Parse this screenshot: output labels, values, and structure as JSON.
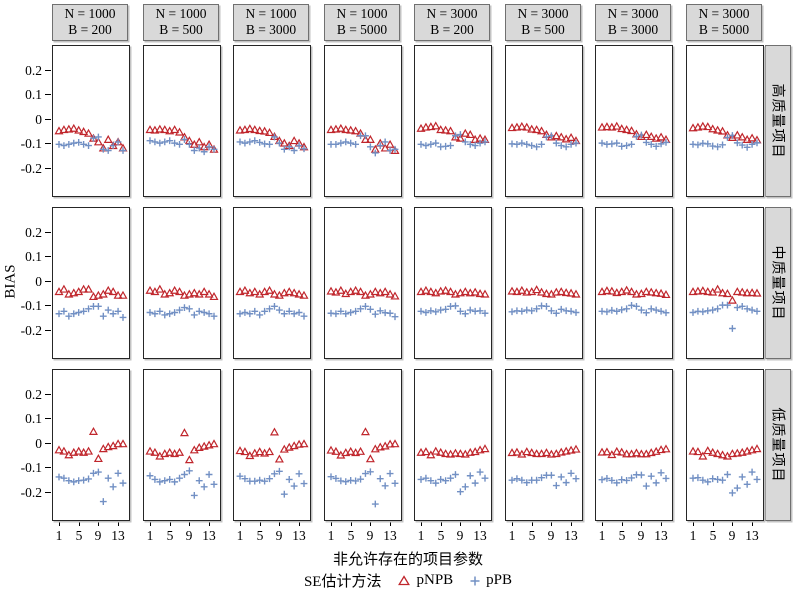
{
  "figure_title": "",
  "columns": [
    {
      "line1": "N = 1000",
      "line2": "B = 200"
    },
    {
      "line1": "N = 1000",
      "line2": "B = 500"
    },
    {
      "line1": "N = 1000",
      "line2": "B = 3000"
    },
    {
      "line1": "N = 1000",
      "line2": "B = 5000"
    },
    {
      "line1": "N = 3000",
      "line2": "B = 200"
    },
    {
      "line1": "N = 3000",
      "line2": "B = 500"
    },
    {
      "line1": "N = 3000",
      "line2": "B = 3000"
    },
    {
      "line1": "N = 3000",
      "line2": "B = 5000"
    }
  ],
  "rows": [
    "高质量项目",
    "中质量项目",
    "低质量项目"
  ],
  "axes": {
    "y_label": "BIAS",
    "y_ticks": [
      0.2,
      0.1,
      0,
      -0.1,
      -0.2
    ],
    "x_ticks": [
      1,
      5,
      9,
      13
    ],
    "x_label": "非允许存在的项目参数"
  },
  "legend": {
    "title": "SE估计方法",
    "items": [
      {
        "symbol": "triangle-icon",
        "label": "pNPB"
      },
      {
        "symbol": "plus-icon",
        "label": "pPB"
      }
    ]
  },
  "colors": {
    "triangle": "#c0262c",
    "plus": "#7290c4",
    "strip_bg": "#d9d9d9",
    "panel_border": "#262626"
  },
  "chart_data": {
    "type": "scatter",
    "x": [
      1,
      2,
      3,
      4,
      5,
      6,
      7,
      8,
      9,
      10,
      11,
      12,
      13,
      14
    ],
    "ylim": [
      -0.31,
      0.3
    ],
    "grid": false,
    "layout": "lattice 3 rows (item quality) x 8 cols (N, B conditions)",
    "panels": [
      {
        "row": "高质量项目",
        "col": "N = 1000, B = 200",
        "pNPB": [
          -0.045,
          -0.04,
          -0.038,
          -0.035,
          -0.042,
          -0.048,
          -0.055,
          -0.075,
          -0.09,
          -0.115,
          -0.08,
          -0.105,
          -0.09,
          -0.115
        ],
        "pPB": [
          -0.1,
          -0.105,
          -0.1,
          -0.095,
          -0.092,
          -0.1,
          -0.105,
          -0.075,
          -0.07,
          -0.12,
          -0.125,
          -0.105,
          -0.09,
          -0.125
        ]
      },
      {
        "row": "高质量项目",
        "col": "N = 1000, B = 500",
        "pNPB": [
          -0.04,
          -0.042,
          -0.038,
          -0.04,
          -0.045,
          -0.04,
          -0.05,
          -0.07,
          -0.085,
          -0.1,
          -0.09,
          -0.11,
          -0.1,
          -0.12
        ],
        "pPB": [
          -0.085,
          -0.09,
          -0.095,
          -0.09,
          -0.085,
          -0.095,
          -0.1,
          -0.08,
          -0.1,
          -0.125,
          -0.115,
          -0.13,
          -0.11,
          -0.12
        ]
      },
      {
        "row": "高质量项目",
        "col": "N = 1000, B = 3000",
        "pNPB": [
          -0.042,
          -0.04,
          -0.036,
          -0.04,
          -0.044,
          -0.046,
          -0.052,
          -0.068,
          -0.085,
          -0.095,
          -0.105,
          -0.085,
          -0.095,
          -0.11
        ],
        "pPB": [
          -0.09,
          -0.095,
          -0.09,
          -0.085,
          -0.092,
          -0.098,
          -0.1,
          -0.07,
          -0.095,
          -0.12,
          -0.11,
          -0.125,
          -0.105,
          -0.118
        ]
      },
      {
        "row": "高质量项目",
        "col": "N = 1000, B = 5000",
        "pNPB": [
          -0.04,
          -0.038,
          -0.035,
          -0.04,
          -0.042,
          -0.045,
          -0.055,
          -0.08,
          -0.08,
          -0.12,
          -0.095,
          -0.115,
          -0.1,
          -0.125
        ],
        "pPB": [
          -0.1,
          -0.1,
          -0.095,
          -0.09,
          -0.095,
          -0.1,
          -0.065,
          -0.065,
          -0.11,
          -0.135,
          -0.105,
          -0.09,
          -0.125,
          -0.12
        ]
      },
      {
        "row": "高质量项目",
        "col": "N = 3000, B = 200",
        "pNPB": [
          -0.035,
          -0.03,
          -0.028,
          -0.025,
          -0.04,
          -0.042,
          -0.045,
          -0.07,
          -0.075,
          -0.055,
          -0.06,
          -0.08,
          -0.075,
          -0.08
        ],
        "pPB": [
          -0.1,
          -0.105,
          -0.1,
          -0.095,
          -0.11,
          -0.108,
          -0.105,
          -0.065,
          -0.06,
          -0.09,
          -0.1,
          -0.105,
          -0.095,
          -0.09
        ]
      },
      {
        "row": "高质量项目",
        "col": "N = 3000, B = 500",
        "pNPB": [
          -0.032,
          -0.03,
          -0.027,
          -0.03,
          -0.038,
          -0.04,
          -0.045,
          -0.06,
          -0.07,
          -0.065,
          -0.07,
          -0.078,
          -0.072,
          -0.085
        ],
        "pPB": [
          -0.098,
          -0.1,
          -0.095,
          -0.1,
          -0.105,
          -0.11,
          -0.1,
          -0.07,
          -0.065,
          -0.095,
          -0.105,
          -0.11,
          -0.1,
          -0.095
        ]
      },
      {
        "row": "高质量项目",
        "col": "N = 3000, B = 3000",
        "pNPB": [
          -0.03,
          -0.028,
          -0.03,
          -0.026,
          -0.036,
          -0.04,
          -0.044,
          -0.058,
          -0.068,
          -0.06,
          -0.068,
          -0.075,
          -0.07,
          -0.08
        ],
        "pPB": [
          -0.095,
          -0.1,
          -0.098,
          -0.095,
          -0.108,
          -0.105,
          -0.1,
          -0.068,
          -0.062,
          -0.092,
          -0.1,
          -0.108,
          -0.098,
          -0.092
        ]
      },
      {
        "row": "高质量项目",
        "col": "N = 3000, B = 5000",
        "pNPB": [
          -0.033,
          -0.03,
          -0.026,
          -0.028,
          -0.037,
          -0.042,
          -0.046,
          -0.062,
          -0.072,
          -0.062,
          -0.07,
          -0.08,
          -0.074,
          -0.082
        ],
        "pPB": [
          -0.1,
          -0.102,
          -0.096,
          -0.098,
          -0.107,
          -0.11,
          -0.102,
          -0.072,
          -0.064,
          -0.094,
          -0.103,
          -0.112,
          -0.1,
          -0.094
        ]
      },
      {
        "row": "中质量项目",
        "col": "N = 1000, B = 200",
        "pNPB": [
          -0.04,
          -0.03,
          -0.05,
          -0.045,
          -0.04,
          -0.03,
          -0.03,
          -0.06,
          -0.055,
          -0.05,
          -0.035,
          -0.04,
          -0.055,
          -0.055
        ],
        "pPB": [
          -0.13,
          -0.12,
          -0.14,
          -0.13,
          -0.125,
          -0.12,
          -0.11,
          -0.1,
          -0.1,
          -0.14,
          -0.115,
          -0.13,
          -0.12,
          -0.145
        ]
      },
      {
        "row": "中质量项目",
        "col": "N = 1000, B = 500",
        "pNPB": [
          -0.035,
          -0.04,
          -0.03,
          -0.05,
          -0.045,
          -0.035,
          -0.04,
          -0.055,
          -0.05,
          -0.045,
          -0.05,
          -0.04,
          -0.05,
          -0.06
        ],
        "pPB": [
          -0.125,
          -0.13,
          -0.12,
          -0.135,
          -0.13,
          -0.125,
          -0.115,
          -0.105,
          -0.11,
          -0.135,
          -0.12,
          -0.125,
          -0.13,
          -0.14
        ]
      },
      {
        "row": "中质量项目",
        "col": "N = 1000, B = 3000",
        "pNPB": [
          -0.04,
          -0.035,
          -0.045,
          -0.04,
          -0.05,
          -0.04,
          -0.035,
          -0.05,
          -0.055,
          -0.045,
          -0.04,
          -0.045,
          -0.05,
          -0.055
        ],
        "pPB": [
          -0.13,
          -0.125,
          -0.13,
          -0.12,
          -0.135,
          -0.12,
          -0.11,
          -0.1,
          -0.115,
          -0.13,
          -0.12,
          -0.13,
          -0.125,
          -0.14
        ]
      },
      {
        "row": "中质量项目",
        "col": "N = 1000, B = 5000",
        "pNPB": [
          -0.038,
          -0.042,
          -0.035,
          -0.048,
          -0.04,
          -0.035,
          -0.04,
          -0.055,
          -0.05,
          -0.04,
          -0.045,
          -0.04,
          -0.05,
          -0.058
        ],
        "pPB": [
          -0.128,
          -0.13,
          -0.12,
          -0.13,
          -0.125,
          -0.12,
          -0.11,
          -0.1,
          -0.112,
          -0.132,
          -0.118,
          -0.126,
          -0.128,
          -0.142
        ]
      },
      {
        "row": "中质量项目",
        "col": "N = 3000, B = 200",
        "pNPB": [
          -0.04,
          -0.035,
          -0.04,
          -0.045,
          -0.038,
          -0.035,
          -0.04,
          -0.05,
          -0.045,
          -0.04,
          -0.045,
          -0.042,
          -0.048,
          -0.05
        ],
        "pPB": [
          -0.12,
          -0.125,
          -0.118,
          -0.122,
          -0.115,
          -0.112,
          -0.1,
          -0.098,
          -0.12,
          -0.13,
          -0.115,
          -0.12,
          -0.118,
          -0.128
        ]
      },
      {
        "row": "中质量项目",
        "col": "N = 3000, B = 500",
        "pNPB": [
          -0.038,
          -0.04,
          -0.035,
          -0.042,
          -0.04,
          -0.032,
          -0.042,
          -0.048,
          -0.05,
          -0.042,
          -0.04,
          -0.044,
          -0.046,
          -0.05
        ],
        "pPB": [
          -0.122,
          -0.118,
          -0.12,
          -0.115,
          -0.118,
          -0.11,
          -0.098,
          -0.1,
          -0.118,
          -0.128,
          -0.112,
          -0.118,
          -0.12,
          -0.125
        ]
      },
      {
        "row": "中质量项目",
        "col": "N = 3000, B = 3000",
        "pNPB": [
          -0.04,
          -0.036,
          -0.038,
          -0.044,
          -0.04,
          -0.034,
          -0.04,
          -0.05,
          -0.048,
          -0.04,
          -0.042,
          -0.045,
          -0.047,
          -0.052
        ],
        "pPB": [
          -0.12,
          -0.122,
          -0.116,
          -0.12,
          -0.114,
          -0.11,
          -0.096,
          -0.1,
          -0.115,
          -0.126,
          -0.11,
          -0.115,
          -0.12,
          -0.126
        ]
      },
      {
        "row": "中质量项目",
        "col": "N = 3000, B = 5000",
        "pNPB": [
          -0.04,
          -0.038,
          -0.036,
          -0.04,
          -0.042,
          -0.03,
          -0.045,
          -0.048,
          -0.075,
          -0.04,
          -0.042,
          -0.045,
          -0.044,
          -0.046
        ],
        "pPB": [
          -0.125,
          -0.12,
          -0.122,
          -0.118,
          -0.115,
          -0.11,
          -0.095,
          -0.095,
          -0.19,
          -0.105,
          -0.1,
          -0.11,
          -0.115,
          -0.12
        ]
      },
      {
        "row": "低质量项目",
        "col": "N = 1000, B = 200",
        "pNPB": [
          -0.025,
          -0.03,
          -0.045,
          -0.035,
          -0.03,
          -0.035,
          -0.03,
          0.05,
          -0.06,
          -0.02,
          -0.012,
          -0.008,
          0.0,
          0.0
        ],
        "pPB": [
          -0.135,
          -0.14,
          -0.15,
          -0.155,
          -0.15,
          -0.148,
          -0.143,
          -0.12,
          -0.115,
          -0.235,
          -0.14,
          -0.175,
          -0.12,
          -0.16
        ]
      },
      {
        "row": "低质量项目",
        "col": "N = 1000, B = 500",
        "pNPB": [
          -0.03,
          -0.035,
          -0.05,
          -0.04,
          -0.035,
          -0.04,
          -0.035,
          0.045,
          -0.065,
          -0.025,
          -0.015,
          -0.01,
          -0.005,
          0.0
        ],
        "pPB": [
          -0.13,
          -0.145,
          -0.155,
          -0.15,
          -0.145,
          -0.155,
          -0.14,
          -0.125,
          -0.11,
          -0.21,
          -0.15,
          -0.175,
          -0.125,
          -0.165
        ]
      },
      {
        "row": "低质量项目",
        "col": "N = 1000, B = 3000",
        "pNPB": [
          -0.028,
          -0.032,
          -0.048,
          -0.038,
          -0.032,
          -0.038,
          -0.032,
          0.048,
          -0.062,
          -0.022,
          -0.014,
          -0.008,
          -0.002,
          0.0
        ],
        "pPB": [
          -0.132,
          -0.142,
          -0.152,
          -0.152,
          -0.148,
          -0.152,
          -0.142,
          -0.122,
          -0.112,
          -0.205,
          -0.145,
          -0.172,
          -0.122,
          -0.162
        ]
      },
      {
        "row": "低质量项目",
        "col": "N = 1000, B = 5000",
        "pNPB": [
          -0.026,
          -0.031,
          -0.046,
          -0.036,
          -0.031,
          -0.036,
          -0.031,
          0.049,
          -0.061,
          -0.021,
          -0.013,
          -0.009,
          -0.001,
          0.0
        ],
        "pPB": [
          -0.134,
          -0.141,
          -0.151,
          -0.154,
          -0.149,
          -0.151,
          -0.144,
          -0.121,
          -0.114,
          -0.245,
          -0.142,
          -0.171,
          -0.121,
          -0.161
        ]
      },
      {
        "row": "低质量项目",
        "col": "N = 3000, B = 200",
        "pNPB": [
          -0.035,
          -0.032,
          -0.045,
          -0.03,
          -0.035,
          -0.04,
          -0.042,
          -0.038,
          -0.04,
          -0.042,
          -0.035,
          -0.032,
          -0.025,
          -0.02
        ],
        "pPB": [
          -0.145,
          -0.14,
          -0.15,
          -0.16,
          -0.145,
          -0.15,
          -0.14,
          -0.125,
          -0.195,
          -0.175,
          -0.13,
          -0.16,
          -0.115,
          -0.14
        ]
      },
      {
        "row": "低质量项目",
        "col": "N = 3000, B = 500",
        "pNPB": [
          -0.036,
          -0.034,
          -0.042,
          -0.032,
          -0.036,
          -0.04,
          -0.04,
          -0.036,
          -0.042,
          -0.04,
          -0.034,
          -0.03,
          -0.026,
          -0.022
        ],
        "pPB": [
          -0.148,
          -0.142,
          -0.148,
          -0.158,
          -0.148,
          -0.148,
          -0.138,
          -0.128,
          -0.128,
          -0.17,
          -0.135,
          -0.158,
          -0.12,
          -0.142
        ]
      },
      {
        "row": "低质量项目",
        "col": "N = 3000, B = 3000",
        "pNPB": [
          -0.034,
          -0.033,
          -0.044,
          -0.031,
          -0.034,
          -0.041,
          -0.041,
          -0.037,
          -0.041,
          -0.041,
          -0.036,
          -0.031,
          -0.024,
          -0.021
        ],
        "pPB": [
          -0.146,
          -0.141,
          -0.149,
          -0.159,
          -0.146,
          -0.149,
          -0.139,
          -0.126,
          -0.127,
          -0.172,
          -0.132,
          -0.159,
          -0.118,
          -0.141
        ]
      },
      {
        "row": "低质量项目",
        "col": "N = 3000, B = 5000",
        "pNPB": [
          -0.03,
          -0.032,
          -0.05,
          -0.028,
          -0.035,
          -0.04,
          -0.045,
          -0.05,
          -0.04,
          -0.038,
          -0.035,
          -0.03,
          -0.025,
          -0.02
        ],
        "pPB": [
          -0.14,
          -0.138,
          -0.148,
          -0.155,
          -0.142,
          -0.145,
          -0.148,
          -0.125,
          -0.2,
          -0.18,
          -0.135,
          -0.165,
          -0.115,
          -0.145
        ]
      }
    ]
  }
}
